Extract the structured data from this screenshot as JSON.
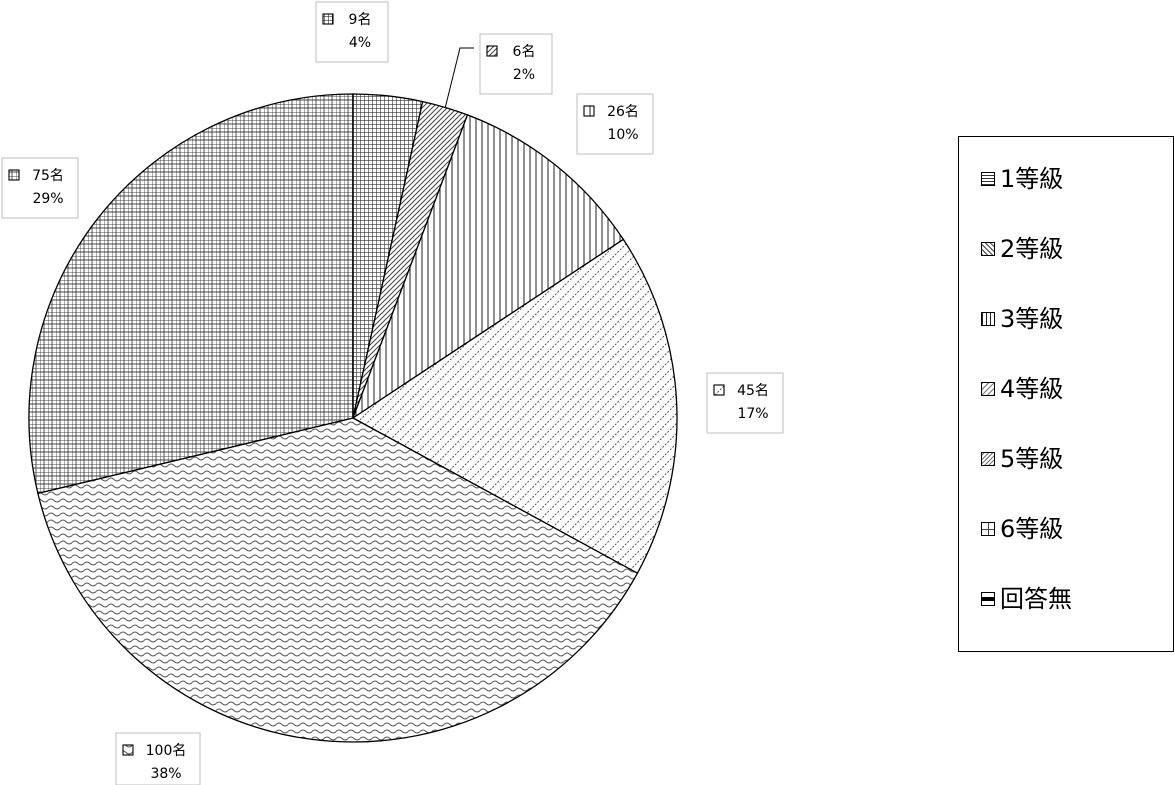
{
  "chart_data": {
    "type": "pie",
    "title": "",
    "slices": [
      {
        "legend": "1等級",
        "value": 9,
        "count_label": "9名",
        "percent_label": "4%",
        "pattern": "dense-grid"
      },
      {
        "legend": "2等級",
        "value": 6,
        "count_label": "6名",
        "percent_label": "2%",
        "pattern": "diagonal-fine"
      },
      {
        "legend": "3等級",
        "value": 26,
        "count_label": "26名",
        "percent_label": "10%",
        "pattern": "vertical-lines"
      },
      {
        "legend": "4等級",
        "value": 45,
        "count_label": "45名",
        "percent_label": "17%",
        "pattern": "diagonal-dashes"
      },
      {
        "legend": "5等級",
        "value": 100,
        "count_label": "100名",
        "percent_label": "38%",
        "pattern": "wave"
      },
      {
        "legend": "6等級",
        "value": 75,
        "count_label": "75名",
        "percent_label": "29%",
        "pattern": "grid"
      },
      {
        "legend": "回答無",
        "value": 0,
        "count_label": "",
        "percent_label": "",
        "pattern": "horizontal-bars"
      }
    ],
    "legend_position": "right"
  }
}
